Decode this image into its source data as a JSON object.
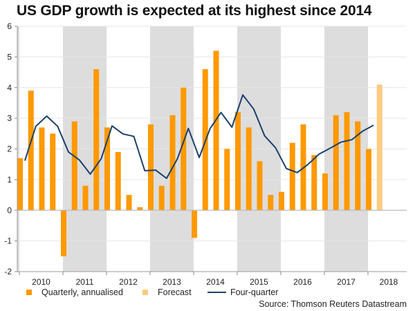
{
  "colors": {
    "actual": "#FF9900",
    "forecast": "#FFCB80",
    "line": "#1B3F6B",
    "band": "#DDDDDD",
    "grid": "#E6E6E6",
    "axis": "#BBBBBB"
  },
  "chart_data": {
    "type": "bar",
    "title": "US GDP growth is expected at its highest since 2014",
    "xlabel": "",
    "ylabel": "",
    "ylim": [
      -2,
      6
    ],
    "yticks": [
      -2,
      -1,
      0,
      1,
      2,
      3,
      4,
      5,
      6
    ],
    "ytick_labels": [
      "-2",
      "-1",
      "0",
      "1",
      "2",
      "3",
      "4",
      "5",
      "6"
    ],
    "grid": true,
    "years": [
      "2010",
      "2011",
      "2012",
      "2013",
      "2014",
      "2015",
      "2016",
      "2017",
      "2018"
    ],
    "shaded_years": [
      "2011",
      "2013",
      "2015",
      "2017"
    ],
    "categories": [
      "2010 Q1",
      "2010 Q2",
      "2010 Q3",
      "2010 Q4",
      "2011 Q1",
      "2011 Q2",
      "2011 Q3",
      "2011 Q4",
      "2012 Q1",
      "2012 Q2",
      "2012 Q3",
      "2012 Q4",
      "2013 Q1",
      "2013 Q2",
      "2013 Q3",
      "2013 Q4",
      "2014 Q1",
      "2014 Q2",
      "2014 Q3",
      "2014 Q4",
      "2015 Q1",
      "2015 Q2",
      "2015 Q3",
      "2015 Q4",
      "2016 Q1",
      "2016 Q2",
      "2016 Q3",
      "2016 Q4",
      "2017 Q1",
      "2017 Q2",
      "2017 Q3",
      "2017 Q4",
      "2018 Q1",
      "2018 Q2"
    ],
    "series": [
      {
        "name": "Quarterly, annualised",
        "type": "bar",
        "values": [
          1.7,
          3.9,
          2.7,
          2.5,
          -1.5,
          2.9,
          0.8,
          4.6,
          2.7,
          1.9,
          0.5,
          0.1,
          2.8,
          0.8,
          3.1,
          4.0,
          -0.9,
          4.6,
          5.2,
          2.0,
          3.2,
          2.7,
          1.6,
          0.5,
          0.6,
          2.2,
          2.8,
          1.8,
          1.2,
          3.1,
          3.2,
          2.9,
          2.0,
          null
        ]
      },
      {
        "name": "Forecast",
        "type": "bar",
        "values": [
          null,
          null,
          null,
          null,
          null,
          null,
          null,
          null,
          null,
          null,
          null,
          null,
          null,
          null,
          null,
          null,
          null,
          null,
          null,
          null,
          null,
          null,
          null,
          null,
          null,
          null,
          null,
          null,
          null,
          null,
          null,
          null,
          null,
          4.1
        ]
      },
      {
        "name": "Four-quarter",
        "type": "line",
        "values": [
          1.62,
          2.74,
          3.07,
          2.74,
          1.9,
          1.64,
          1.18,
          1.68,
          2.75,
          2.49,
          2.41,
          1.29,
          1.31,
          1.04,
          1.68,
          2.67,
          1.72,
          2.67,
          3.19,
          2.71,
          3.76,
          3.3,
          2.43,
          2.04,
          1.36,
          1.23,
          1.5,
          1.83,
          2.02,
          2.22,
          2.3,
          2.58,
          2.77,
          null
        ]
      }
    ],
    "legend": {
      "placement": "bottom",
      "entries": [
        "Quarterly, annualised",
        "Forecast",
        "Four-quarter"
      ]
    },
    "source": "Source: Thomson Reuters Datastream"
  }
}
